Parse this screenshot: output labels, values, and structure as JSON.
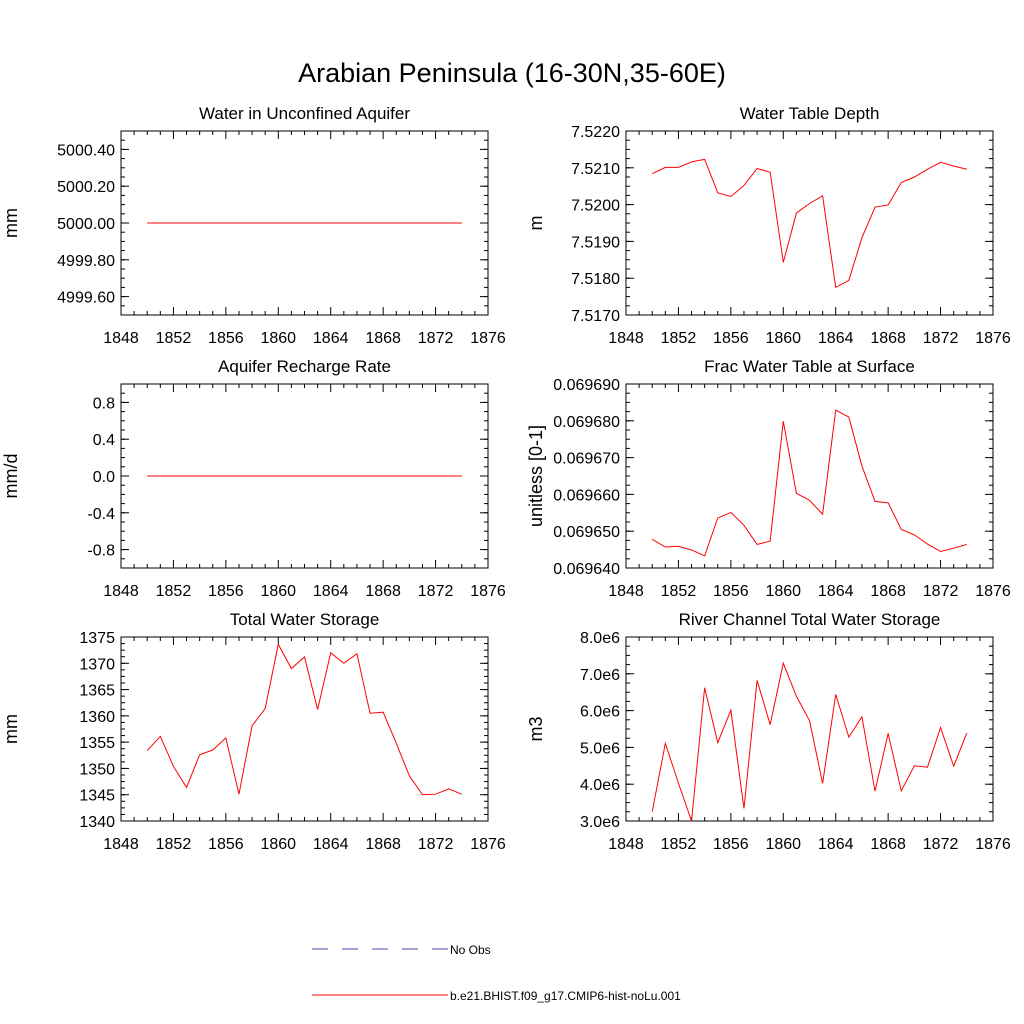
{
  "page": {
    "title": "Arabian Peninsula (16-30N,35-60E)"
  },
  "colors": {
    "model_line": "#ff0000",
    "obs_line": "#4a4ab0",
    "axis": "#000000"
  },
  "legend": {
    "obs_label": "No Obs",
    "model_label": "b.e21.BHIST.f09_g17.CMIP6-hist-noLu.001"
  },
  "chart_data": [
    {
      "type": "line",
      "title": "Water in Unconfined Aquifer",
      "xlabel": "",
      "ylabel": "mm",
      "xlim": [
        1848,
        1876
      ],
      "ylim": [
        4999.5,
        5000.5
      ],
      "xticks": [
        "1848",
        "1852",
        "1856",
        "1860",
        "1864",
        "1868",
        "1872",
        "1876"
      ],
      "yticks": [
        {
          "v": 4999.6,
          "label": "4999.60"
        },
        {
          "v": 4999.8,
          "label": "4999.80"
        },
        {
          "v": 5000.0,
          "label": "5000.00"
        },
        {
          "v": 5000.2,
          "label": "5000.20"
        },
        {
          "v": 5000.4,
          "label": "5000.40"
        }
      ],
      "x": [
        1850,
        1851,
        1852,
        1853,
        1854,
        1855,
        1856,
        1857,
        1858,
        1859,
        1860,
        1861,
        1862,
        1863,
        1864,
        1865,
        1866,
        1867,
        1868,
        1869,
        1870,
        1871,
        1872,
        1873,
        1874
      ],
      "series": [
        {
          "values": [
            5000,
            5000,
            5000,
            5000,
            5000,
            5000,
            5000,
            5000,
            5000,
            5000,
            5000,
            5000,
            5000,
            5000,
            5000,
            5000,
            5000,
            5000,
            5000,
            5000,
            5000,
            5000,
            5000,
            5000,
            5000
          ]
        }
      ]
    },
    {
      "type": "line",
      "title": "Water Table Depth",
      "xlabel": "",
      "ylabel": "m",
      "xlim": [
        1848,
        1876
      ],
      "ylim": [
        7.517,
        7.522
      ],
      "xticks": [
        "1848",
        "1852",
        "1856",
        "1860",
        "1864",
        "1868",
        "1872",
        "1876"
      ],
      "yticks": [
        {
          "v": 7.517,
          "label": "7.5170"
        },
        {
          "v": 7.518,
          "label": "7.5180"
        },
        {
          "v": 7.519,
          "label": "7.5190"
        },
        {
          "v": 7.52,
          "label": "7.5200"
        },
        {
          "v": 7.521,
          "label": "7.5210"
        },
        {
          "v": 7.522,
          "label": "7.5220"
        }
      ],
      "x": [
        1850,
        1851,
        1852,
        1853,
        1854,
        1855,
        1856,
        1857,
        1858,
        1859,
        1860,
        1861,
        1862,
        1863,
        1864,
        1865,
        1866,
        1867,
        1868,
        1869,
        1870,
        1871,
        1872,
        1873,
        1874
      ],
      "series": [
        {
          "values": [
            7.52084,
            7.52101,
            7.52101,
            7.52116,
            7.52123,
            7.52032,
            7.52022,
            7.52052,
            7.52098,
            7.52088,
            7.51843,
            7.51977,
            7.52003,
            7.52024,
            7.51775,
            7.51794,
            7.5191,
            7.51993,
            7.51999,
            7.5206,
            7.52075,
            7.52096,
            7.52115,
            7.52105,
            7.52096
          ]
        }
      ]
    },
    {
      "type": "line",
      "title": "Aquifer Recharge Rate",
      "xlabel": "",
      "ylabel": "mm/d",
      "xlim": [
        1848,
        1876
      ],
      "ylim": [
        -1.0,
        1.0
      ],
      "xticks": [
        "1848",
        "1852",
        "1856",
        "1860",
        "1864",
        "1868",
        "1872",
        "1876"
      ],
      "yticks": [
        {
          "v": -0.8,
          "label": "-0.8"
        },
        {
          "v": -0.4,
          "label": "-0.4"
        },
        {
          "v": 0.0,
          "label": "0.0"
        },
        {
          "v": 0.4,
          "label": "0.4"
        },
        {
          "v": 0.8,
          "label": "0.8"
        }
      ],
      "x": [
        1850,
        1851,
        1852,
        1853,
        1854,
        1855,
        1856,
        1857,
        1858,
        1859,
        1860,
        1861,
        1862,
        1863,
        1864,
        1865,
        1866,
        1867,
        1868,
        1869,
        1870,
        1871,
        1872,
        1873,
        1874
      ],
      "series": [
        {
          "values": [
            0,
            0,
            0,
            0,
            0,
            0,
            0,
            0,
            0,
            0,
            0,
            0,
            0,
            0,
            0,
            0,
            0,
            0,
            0,
            0,
            0,
            0,
            0,
            0,
            0
          ]
        }
      ]
    },
    {
      "type": "line",
      "title": "Frac Water Table at Surface",
      "xlabel": "",
      "ylabel": "unitless [0-1]",
      "xlim": [
        1848,
        1876
      ],
      "ylim": [
        0.06964,
        0.06969
      ],
      "xticks": [
        "1848",
        "1852",
        "1856",
        "1860",
        "1864",
        "1868",
        "1872",
        "1876"
      ],
      "yticks": [
        {
          "v": 0.06964,
          "label": "0.069640"
        },
        {
          "v": 0.06965,
          "label": "0.069650"
        },
        {
          "v": 0.06966,
          "label": "0.069660"
        },
        {
          "v": 0.06967,
          "label": "0.069670"
        },
        {
          "v": 0.06968,
          "label": "0.069680"
        },
        {
          "v": 0.06969,
          "label": "0.069690"
        }
      ],
      "x": [
        1850,
        1851,
        1852,
        1853,
        1854,
        1855,
        1856,
        1857,
        1858,
        1859,
        1860,
        1861,
        1862,
        1863,
        1864,
        1865,
        1866,
        1867,
        1868,
        1869,
        1870,
        1871,
        1872,
        1873,
        1874
      ],
      "series": [
        {
          "values": [
            0.0696478,
            0.0696457,
            0.0696459,
            0.0696449,
            0.0696433,
            0.0696536,
            0.0696551,
            0.0696516,
            0.0696464,
            0.0696473,
            0.0696799,
            0.0696603,
            0.0696584,
            0.0696546,
            0.0696829,
            0.069681,
            0.0696677,
            0.0696581,
            0.0696577,
            0.0696505,
            0.069649,
            0.0696465,
            0.0696445,
            0.0696454,
            0.0696464
          ]
        }
      ]
    },
    {
      "type": "line",
      "title": "Total Water Storage",
      "xlabel": "",
      "ylabel": "mm",
      "xlim": [
        1848,
        1876
      ],
      "ylim": [
        1340,
        1375
      ],
      "xticks": [
        "1848",
        "1852",
        "1856",
        "1860",
        "1864",
        "1868",
        "1872",
        "1876"
      ],
      "yticks": [
        {
          "v": 1340,
          "label": "1340"
        },
        {
          "v": 1345,
          "label": "1345"
        },
        {
          "v": 1350,
          "label": "1350"
        },
        {
          "v": 1355,
          "label": "1355"
        },
        {
          "v": 1360,
          "label": "1360"
        },
        {
          "v": 1365,
          "label": "1365"
        },
        {
          "v": 1370,
          "label": "1370"
        },
        {
          "v": 1375,
          "label": "1375"
        }
      ],
      "x": [
        1850,
        1851,
        1852,
        1853,
        1854,
        1855,
        1856,
        1857,
        1858,
        1859,
        1860,
        1861,
        1862,
        1863,
        1864,
        1865,
        1866,
        1867,
        1868,
        1869,
        1870,
        1871,
        1872,
        1873,
        1874
      ],
      "series": [
        {
          "values": [
            1353.4,
            1356.1,
            1350.4,
            1346.4,
            1352.6,
            1353.5,
            1355.8,
            1345.1,
            1358.1,
            1361.4,
            1373.6,
            1369.0,
            1371.2,
            1361.2,
            1372.0,
            1370.0,
            1371.8,
            1360.5,
            1360.7,
            1354.8,
            1348.6,
            1345.0,
            1345.1,
            1346.1,
            1345.1
          ]
        }
      ]
    },
    {
      "type": "line",
      "title": "River Channel Total Water Storage",
      "xlabel": "",
      "ylabel": "m3",
      "xlim": [
        1848,
        1876
      ],
      "ylim": [
        3000000,
        8000000
      ],
      "xticks": [
        "1848",
        "1852",
        "1856",
        "1860",
        "1864",
        "1868",
        "1872",
        "1876"
      ],
      "yticks": [
        {
          "v": 3000000,
          "label": "3.0e6"
        },
        {
          "v": 4000000,
          "label": "4.0e6"
        },
        {
          "v": 5000000,
          "label": "5.0e6"
        },
        {
          "v": 6000000,
          "label": "6.0e6"
        },
        {
          "v": 7000000,
          "label": "7.0e6"
        },
        {
          "v": 8000000,
          "label": "8.0e6"
        }
      ],
      "x": [
        1850,
        1851,
        1852,
        1853,
        1854,
        1855,
        1856,
        1857,
        1858,
        1859,
        1860,
        1861,
        1862,
        1863,
        1864,
        1865,
        1866,
        1867,
        1868,
        1869,
        1870,
        1871,
        1872,
        1873,
        1874
      ],
      "series": [
        {
          "values": [
            3250000,
            5110000,
            4030000,
            3000000,
            6620000,
            5130000,
            6010000,
            3340000,
            6820000,
            5620000,
            7290000,
            6390000,
            5730000,
            4020000,
            6440000,
            5280000,
            5830000,
            3810000,
            5380000,
            3820000,
            4500000,
            4460000,
            5540000,
            4490000,
            5390000
          ]
        }
      ]
    }
  ]
}
